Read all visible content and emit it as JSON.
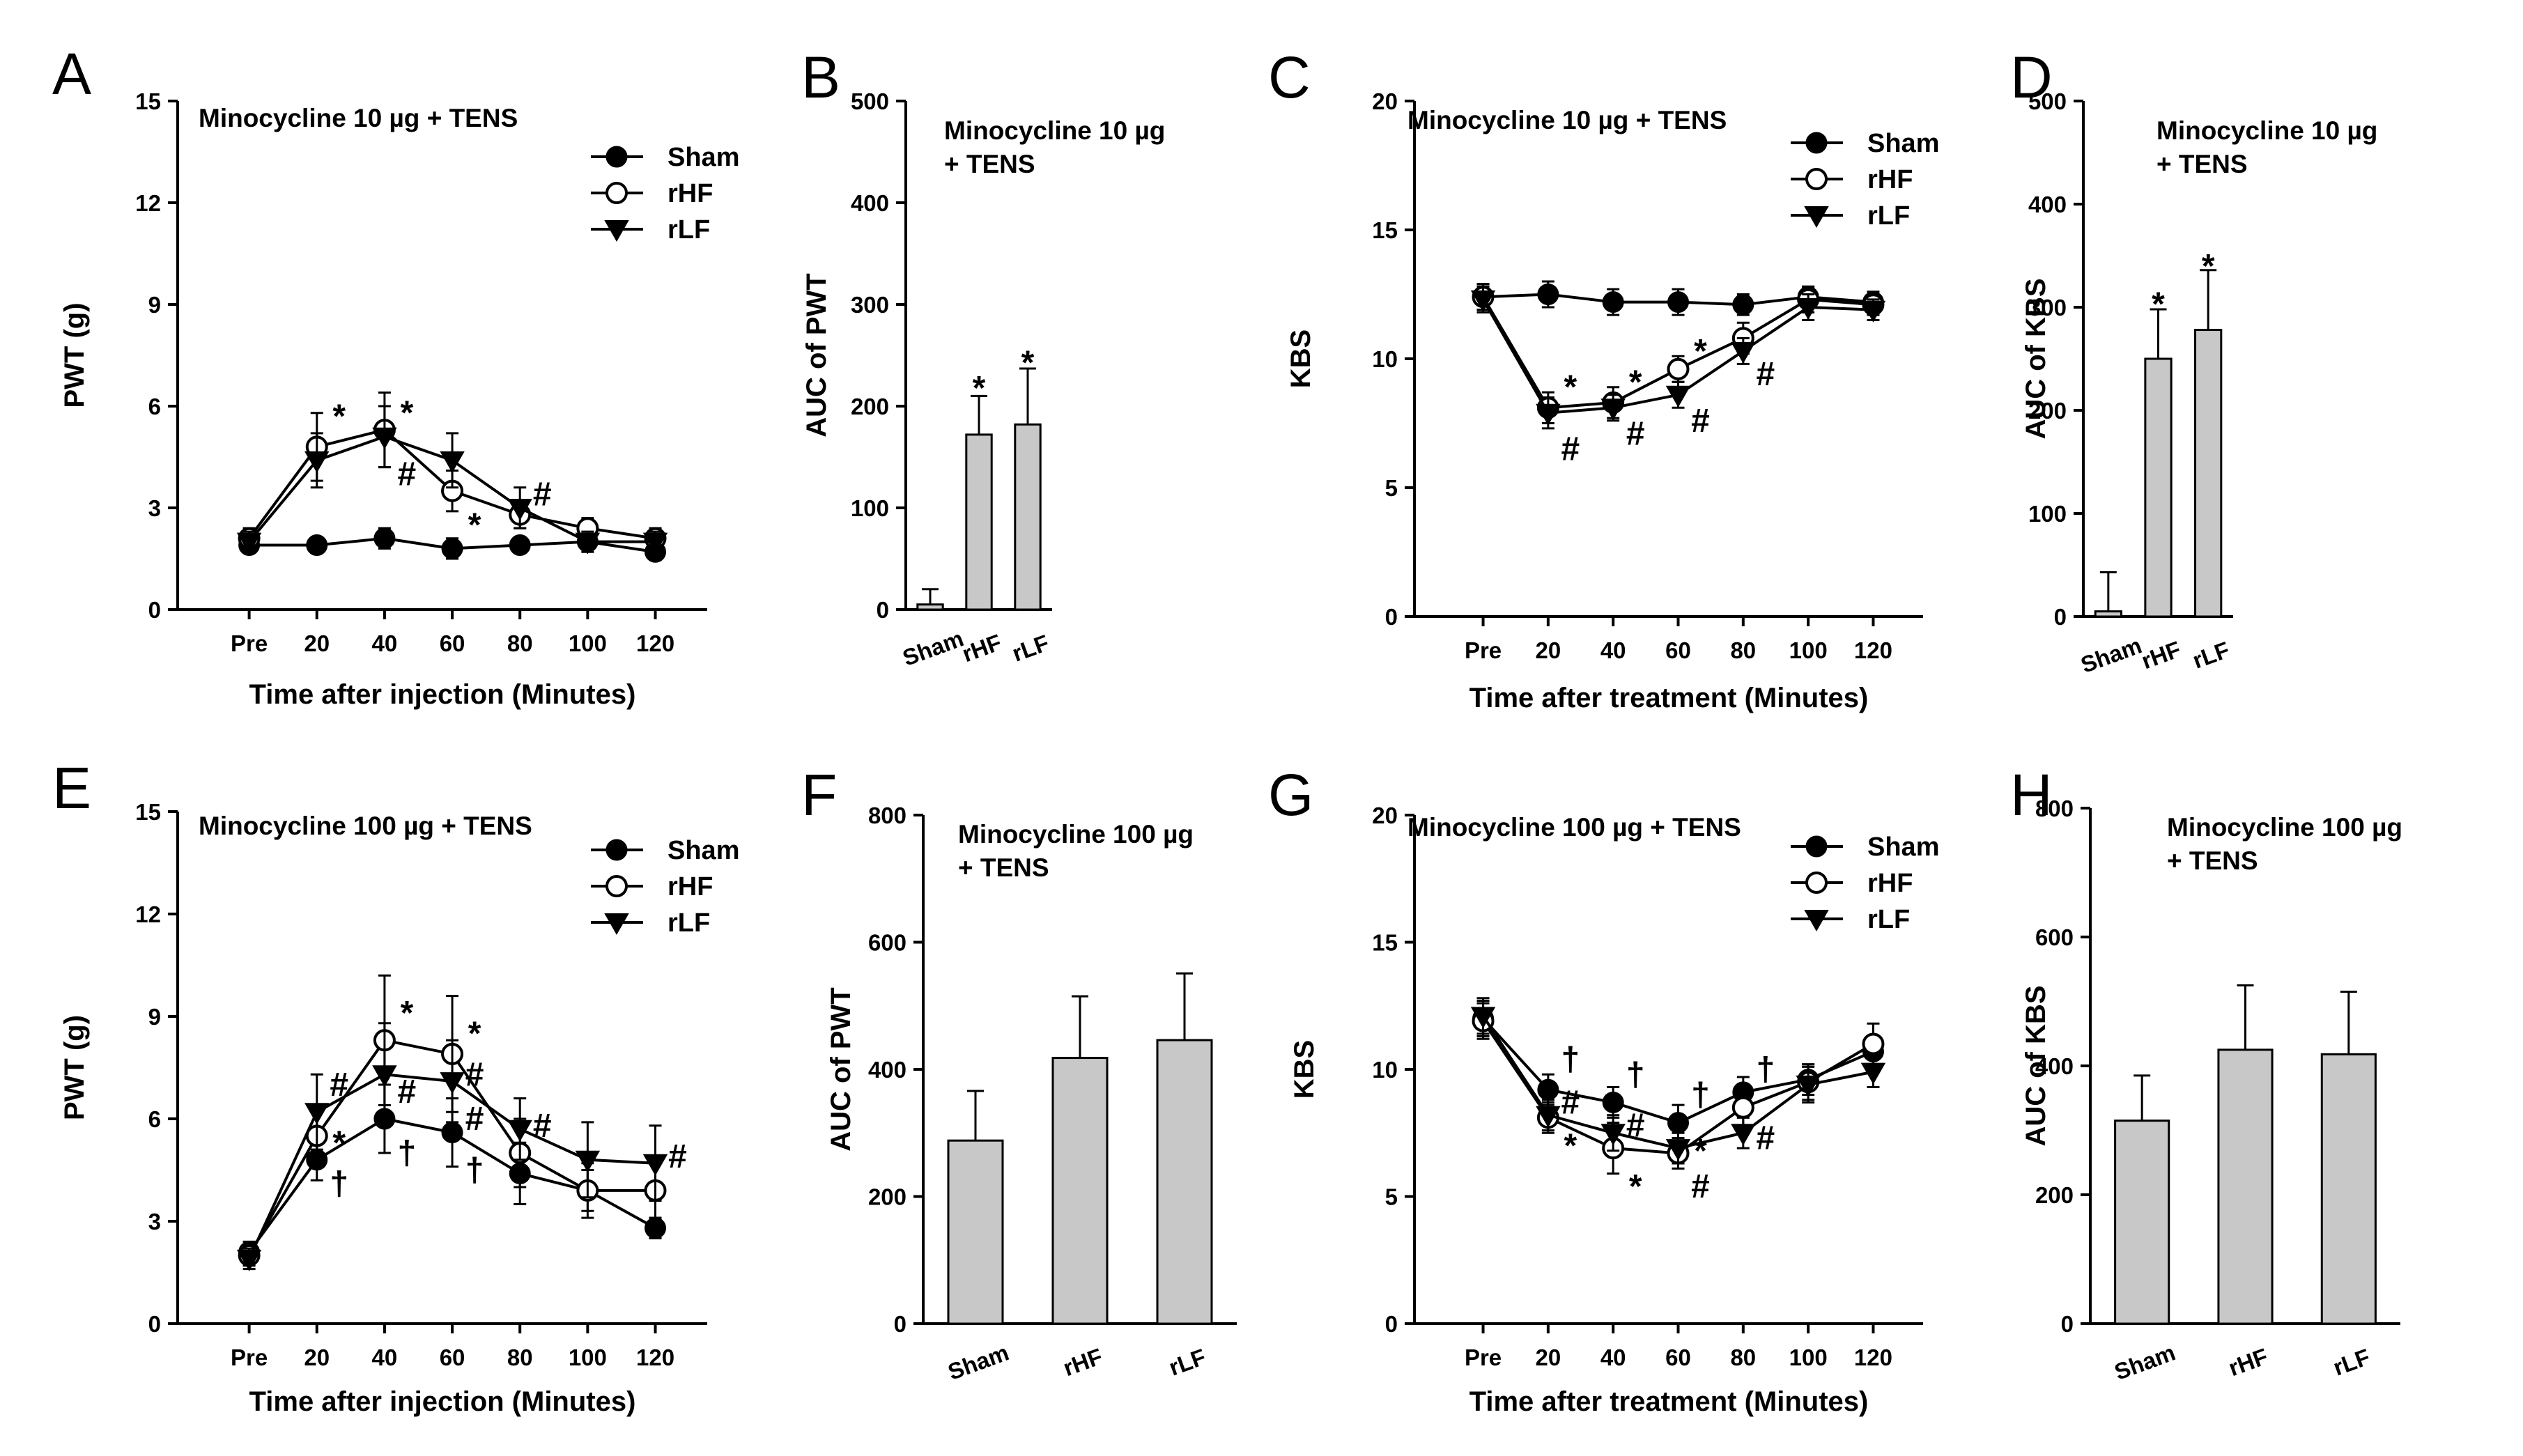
{
  "figure": {
    "panel_letters": [
      "A",
      "B",
      "C",
      "D",
      "E",
      "F",
      "G",
      "H"
    ]
  },
  "chart_data": [
    {
      "id": "A",
      "type": "line",
      "panel": "A",
      "subtitle": [
        "Minocycline 10 µg + TENS"
      ],
      "xlabel": "Time after injection (Minutes)",
      "ylabel": "PWT (g)",
      "categories": [
        "Pre",
        "20",
        "40",
        "60",
        "80",
        "100",
        "120"
      ],
      "ylim": [
        0,
        15
      ],
      "yticks": [
        0,
        3,
        6,
        9,
        12,
        15
      ],
      "legend": [
        "Sham",
        "rHF",
        "rLF"
      ],
      "legend_position": "top-right",
      "series": [
        {
          "name": "Sham",
          "marker": "circle-filled",
          "values": [
            1.9,
            1.9,
            2.1,
            1.8,
            1.9,
            2.0,
            1.7
          ],
          "errors": [
            0.2,
            0.2,
            0.3,
            0.3,
            0.2,
            0.2,
            0.2
          ]
        },
        {
          "name": "rHF",
          "marker": "circle-open",
          "values": [
            2.1,
            4.8,
            5.3,
            3.5,
            2.8,
            2.4,
            2.1
          ],
          "errors": [
            0.3,
            1.0,
            1.1,
            0.6,
            0.4,
            0.3,
            0.3
          ]
        },
        {
          "name": "rLF",
          "marker": "triangle-down",
          "values": [
            2.0,
            4.4,
            5.1,
            4.4,
            3.0,
            2.0,
            2.0
          ],
          "errors": [
            0.3,
            0.8,
            0.9,
            0.8,
            0.6,
            0.3,
            0.3
          ]
        }
      ],
      "annotations": [
        {
          "text": "*",
          "category": "20",
          "y": 5.7
        },
        {
          "text": "*",
          "category": "40",
          "y": 5.8
        },
        {
          "text": "#",
          "category": "40",
          "y": 4.0
        },
        {
          "text": "*",
          "category": "60",
          "y": 2.5
        },
        {
          "text": "#",
          "category": "80",
          "y": 3.4
        }
      ]
    },
    {
      "id": "B",
      "type": "bar",
      "panel": "B",
      "subtitle": [
        "Minocycline 10 µg",
        "+ TENS"
      ],
      "xlabel": "",
      "ylabel": "AUC of PWT",
      "categories": [
        "Sham",
        "rHF",
        "rLF"
      ],
      "values": [
        5,
        172,
        182
      ],
      "errors": [
        15,
        38,
        55
      ],
      "ylim": [
        0,
        500
      ],
      "yticks": [
        0,
        100,
        200,
        300,
        400,
        500
      ],
      "annotations": [
        {
          "text": "*",
          "category": "rHF",
          "y": 222
        },
        {
          "text": "*",
          "category": "rLF",
          "y": 247
        }
      ]
    },
    {
      "id": "C",
      "type": "line",
      "panel": "C",
      "subtitle": [
        "Minocycline 10 µg + TENS"
      ],
      "xlabel": "Time after treatment (Minutes)",
      "ylabel": "KBS",
      "categories": [
        "Pre",
        "20",
        "40",
        "60",
        "80",
        "100",
        "120"
      ],
      "ylim": [
        0,
        20
      ],
      "yticks": [
        0,
        5,
        10,
        15,
        20
      ],
      "legend": [
        "Sham",
        "rHF",
        "rLF"
      ],
      "legend_position": "top-right",
      "series": [
        {
          "name": "Sham",
          "marker": "circle-filled",
          "values": [
            12.4,
            12.5,
            12.2,
            12.2,
            12.1,
            12.4,
            12.2
          ],
          "errors": [
            0.5,
            0.5,
            0.5,
            0.5,
            0.4,
            0.4,
            0.4
          ]
        },
        {
          "name": "rHF",
          "marker": "circle-open",
          "values": [
            12.4,
            8.1,
            8.3,
            9.6,
            10.8,
            12.3,
            12.1
          ],
          "errors": [
            0.5,
            0.6,
            0.6,
            0.5,
            0.6,
            0.5,
            0.4
          ]
        },
        {
          "name": "rLF",
          "marker": "triangle-down",
          "values": [
            12.3,
            7.9,
            8.1,
            8.6,
            10.3,
            12.0,
            11.9
          ],
          "errors": [
            0.5,
            0.6,
            0.5,
            0.5,
            0.5,
            0.5,
            0.4
          ]
        }
      ],
      "annotations": [
        {
          "text": "*",
          "category": "20",
          "y": 8.9
        },
        {
          "text": "#",
          "category": "20",
          "y": 6.5
        },
        {
          "text": "*",
          "category": "40",
          "y": 9.1
        },
        {
          "text": "#",
          "category": "40",
          "y": 7.1
        },
        {
          "text": "*",
          "category": "60",
          "y": 10.3
        },
        {
          "text": "#",
          "category": "60",
          "y": 7.6
        },
        {
          "text": "#",
          "category": "80",
          "y": 9.4
        }
      ]
    },
    {
      "id": "D",
      "type": "bar",
      "panel": "D",
      "subtitle": [
        "Minocycline 10 µg",
        "+ TENS"
      ],
      "xlabel": "",
      "ylabel": "AUC of KBS",
      "categories": [
        "Sham",
        "rHF",
        "rLF"
      ],
      "values": [
        5,
        250,
        278
      ],
      "errors": [
        38,
        48,
        58
      ],
      "ylim": [
        0,
        500
      ],
      "yticks": [
        0,
        100,
        200,
        300,
        400,
        500
      ],
      "annotations": [
        {
          "text": "*",
          "category": "rHF",
          "y": 307
        },
        {
          "text": "*",
          "category": "rLF",
          "y": 344
        }
      ]
    },
    {
      "id": "E",
      "type": "line",
      "panel": "E",
      "subtitle": [
        "Minocycline 100 µg + TENS"
      ],
      "xlabel": "Time after injection (Minutes)",
      "ylabel": "PWT (g)",
      "categories": [
        "Pre",
        "20",
        "40",
        "60",
        "80",
        "100",
        "120"
      ],
      "ylim": [
        0,
        15
      ],
      "yticks": [
        0,
        3,
        6,
        9,
        12,
        15
      ],
      "legend": [
        "Sham",
        "rHF",
        "rLF"
      ],
      "legend_position": "top-right",
      "series": [
        {
          "name": "Sham",
          "marker": "circle-filled",
          "values": [
            2.1,
            4.8,
            6.0,
            5.6,
            4.4,
            3.9,
            2.8
          ],
          "errors": [
            0.3,
            0.6,
            1.0,
            1.0,
            0.9,
            0.6,
            0.3
          ]
        },
        {
          "name": "rHF",
          "marker": "circle-open",
          "values": [
            2.0,
            5.5,
            8.3,
            7.9,
            5.0,
            3.9,
            3.9
          ],
          "errors": [
            0.3,
            0.8,
            1.9,
            1.7,
            1.0,
            0.8,
            0.8
          ]
        },
        {
          "name": "rLF",
          "marker": "triangle-down",
          "values": [
            1.9,
            6.2,
            7.3,
            7.1,
            5.7,
            4.8,
            4.7
          ],
          "errors": [
            0.3,
            1.1,
            1.5,
            1.2,
            0.9,
            1.1,
            1.1
          ]
        }
      ],
      "annotations": [
        {
          "text": "#",
          "category": "20",
          "y": 7.0
        },
        {
          "text": "*",
          "category": "20",
          "y": 5.3
        },
        {
          "text": "†",
          "category": "20",
          "y": 4.1
        },
        {
          "text": "*",
          "category": "40",
          "y": 9.1
        },
        {
          "text": "#",
          "category": "40",
          "y": 6.8
        },
        {
          "text": "†",
          "category": "40",
          "y": 5.0
        },
        {
          "text": "*",
          "category": "60",
          "y": 8.5
        },
        {
          "text": "#",
          "category": "60",
          "y": 6.0
        },
        {
          "text": "#",
          "category": "60",
          "y": 7.3
        },
        {
          "text": "†",
          "category": "60",
          "y": 4.5
        },
        {
          "text": "#",
          "category": "80",
          "y": 5.8
        },
        {
          "text": "#",
          "category": "120",
          "y": 4.9
        }
      ]
    },
    {
      "id": "F",
      "type": "bar",
      "panel": "F",
      "subtitle": [
        "Minocycline 100 µg",
        "+ TENS"
      ],
      "xlabel": "",
      "ylabel": "AUC of PWT",
      "categories": [
        "Sham",
        "rHF",
        "rLF"
      ],
      "values": [
        288,
        418,
        446
      ],
      "errors": [
        78,
        97,
        105
      ],
      "ylim": [
        0,
        800
      ],
      "yticks": [
        0,
        200,
        400,
        600,
        800
      ],
      "annotations": []
    },
    {
      "id": "G",
      "type": "line",
      "panel": "G",
      "subtitle": [
        "Minocycline 100 µg + TENS"
      ],
      "xlabel": "Time after treatment (Minutes)",
      "ylabel": "KBS",
      "categories": [
        "Pre",
        "20",
        "40",
        "60",
        "80",
        "100",
        "120"
      ],
      "ylim": [
        0,
        20
      ],
      "yticks": [
        0,
        5,
        10,
        15,
        20
      ],
      "legend": [
        "Sham",
        "rHF",
        "rLF"
      ],
      "legend_position": "top-right",
      "series": [
        {
          "name": "Sham",
          "marker": "circle-filled",
          "values": [
            12.0,
            9.2,
            8.7,
            7.9,
            9.1,
            9.6,
            10.7
          ],
          "errors": [
            0.7,
            0.6,
            0.6,
            0.7,
            0.6,
            0.6,
            0.6
          ]
        },
        {
          "name": "rHF",
          "marker": "circle-open",
          "values": [
            11.9,
            8.1,
            6.9,
            6.7,
            8.5,
            9.5,
            11.0
          ],
          "errors": [
            0.7,
            0.6,
            1.0,
            0.6,
            0.7,
            0.7,
            0.8
          ]
        },
        {
          "name": "rLF",
          "marker": "triangle-down",
          "values": [
            12.1,
            8.2,
            7.5,
            6.9,
            7.5,
            9.4,
            9.9
          ],
          "errors": [
            0.7,
            0.6,
            0.7,
            0.6,
            0.6,
            0.7,
            0.6
          ]
        }
      ],
      "annotations": [
        {
          "text": "†",
          "category": "20",
          "y": 10.4
        },
        {
          "text": "#",
          "category": "20",
          "y": 8.7
        },
        {
          "text": "*",
          "category": "20",
          "y": 7.0
        },
        {
          "text": "†",
          "category": "40",
          "y": 9.8
        },
        {
          "text": "#",
          "category": "40",
          "y": 7.8
        },
        {
          "text": "*",
          "category": "40",
          "y": 5.4
        },
        {
          "text": "†",
          "category": "60",
          "y": 9.0
        },
        {
          "text": "*",
          "category": "60",
          "y": 6.8
        },
        {
          "text": "#",
          "category": "60",
          "y": 5.4
        },
        {
          "text": "†",
          "category": "80",
          "y": 10.0
        },
        {
          "text": "#",
          "category": "80",
          "y": 7.3
        }
      ]
    },
    {
      "id": "H",
      "type": "bar",
      "panel": "H",
      "subtitle": [
        "Minocycline 100 µg",
        "+ TENS"
      ],
      "xlabel": "",
      "ylabel": "AUC of KBS",
      "categories": [
        "Sham",
        "rHF",
        "rLF"
      ],
      "values": [
        315,
        425,
        418
      ],
      "errors": [
        70,
        100,
        97
      ],
      "ylim": [
        0,
        800
      ],
      "yticks": [
        0,
        200,
        400,
        600,
        800
      ],
      "annotations": []
    }
  ]
}
